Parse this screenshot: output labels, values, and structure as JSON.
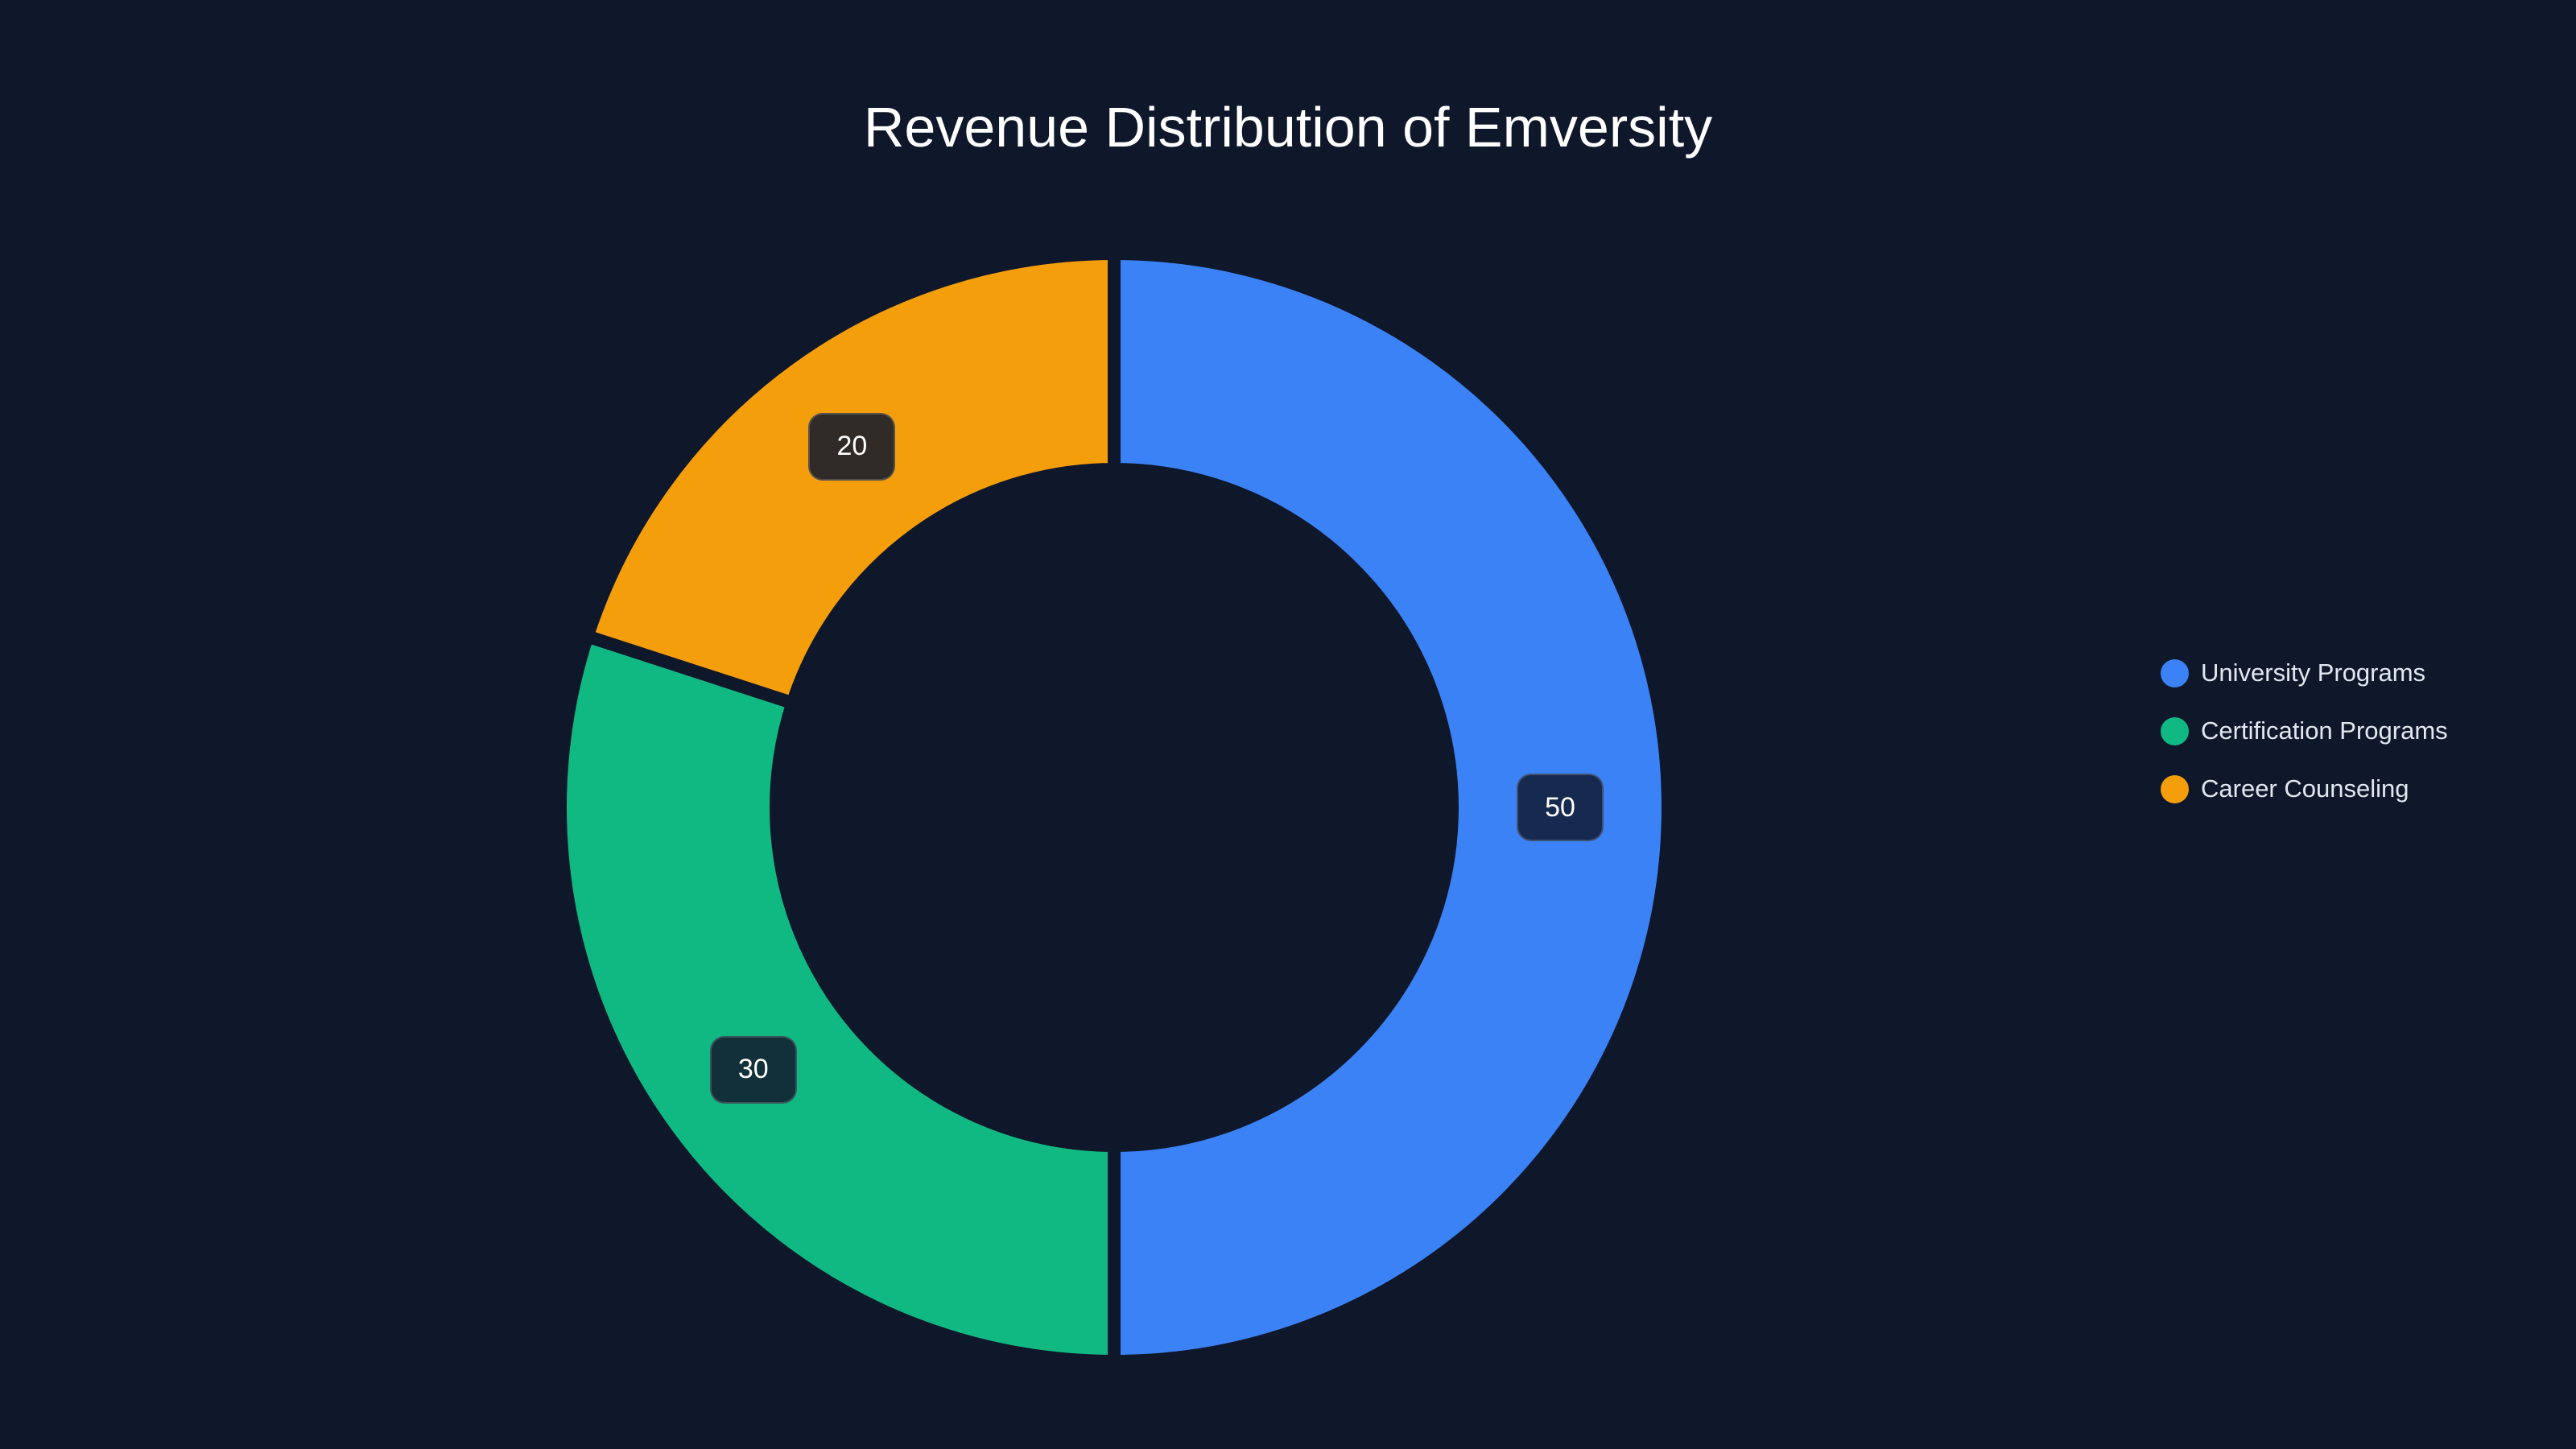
{
  "chart_data": {
    "type": "pie",
    "variant": "donut",
    "title": "Revenue Distribution of Emversity",
    "categories": [
      "University Programs",
      "Certification Programs",
      "Career Counseling"
    ],
    "values": [
      50,
      30,
      20
    ],
    "colors": [
      "#3b82f6",
      "#10b981",
      "#f59e0b"
    ],
    "data_labels": [
      "50",
      "30",
      "20"
    ],
    "legend_position": "right",
    "start_angle": "12 o'clock, clockwise"
  },
  "title": "Revenue Distribution of Emversity",
  "labels": {
    "university": "50",
    "certification": "30",
    "career": "20"
  },
  "label_colors": {
    "university": "#162a4f",
    "certification": "#11303a",
    "career": "#302b26"
  },
  "legend": {
    "items": [
      {
        "label": "University Programs",
        "color": "#3b82f6"
      },
      {
        "label": "Certification Programs",
        "color": "#10b981"
      },
      {
        "label": "Career Counseling",
        "color": "#f59e0b"
      }
    ]
  },
  "background": "#0f172a"
}
